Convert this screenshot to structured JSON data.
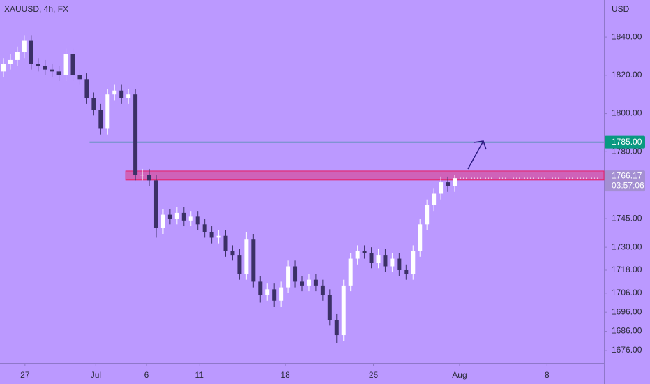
{
  "chart_data": {
    "type": "candlestick",
    "title": "XAUUSD, 4h, FX",
    "currency": "USD",
    "x": [
      0.5,
      1.5,
      2.5,
      3.5,
      4.5,
      5.5,
      6.5,
      7.5,
      8.5,
      9.5,
      10.5,
      11.5,
      12.5,
      13.5,
      14.5,
      15.5,
      16.5,
      17.5,
      18.5,
      19.5,
      20.5,
      21.5,
      22.5,
      23.5,
      24.5,
      25.5,
      26.5,
      27.5,
      28.5,
      29.5,
      30.5,
      31.5,
      32.5,
      33.5,
      34.5,
      35.5,
      36.5,
      37.5,
      38.5,
      39.5,
      40.5,
      41.5,
      42.5,
      43.5,
      44.5,
      45.5,
      46.5,
      47.5,
      48.5,
      49.5,
      50.5,
      51.5,
      52.5,
      53.5,
      54.5,
      55.5,
      56.5,
      57.5,
      58.5,
      59.5,
      60.5,
      61.5,
      62.5,
      63.5,
      64.5,
      65.5
    ],
    "open": [
      1822,
      1826,
      1828,
      1832,
      1838,
      1826,
      1825,
      1823,
      1822,
      1820,
      1831,
      1820,
      1818,
      1808,
      1802,
      1792,
      1810,
      1812,
      1808,
      1810,
      1768,
      1768,
      1765,
      1740,
      1747,
      1745,
      1748,
      1744,
      1746,
      1742,
      1738,
      1735,
      1736,
      1728,
      1726,
      1716,
      1734,
      1712,
      1705,
      1708,
      1702,
      1709,
      1720,
      1712,
      1710,
      1713,
      1710,
      1705,
      1692,
      1684,
      1710,
      1724,
      1728,
      1727,
      1722,
      1726,
      1720,
      1724,
      1718,
      1716,
      1728,
      1742,
      1752,
      1758,
      1764,
      1762
    ],
    "high": [
      1829,
      1831,
      1835,
      1841,
      1841,
      1829,
      1828,
      1826,
      1825,
      1834,
      1834,
      1823,
      1821,
      1811,
      1805,
      1813,
      1815,
      1815,
      1813,
      1813,
      1771,
      1771,
      1768,
      1750,
      1750,
      1751,
      1751,
      1749,
      1749,
      1745,
      1741,
      1739,
      1739,
      1731,
      1729,
      1738,
      1737,
      1715,
      1711,
      1711,
      1712,
      1723,
      1723,
      1715,
      1716,
      1716,
      1713,
      1708,
      1695,
      1713,
      1727,
      1731,
      1731,
      1730,
      1729,
      1729,
      1727,
      1727,
      1721,
      1731,
      1745,
      1755,
      1761,
      1767,
      1767,
      1768
    ],
    "low": [
      1819,
      1823,
      1825,
      1829,
      1823,
      1822,
      1820,
      1819,
      1817,
      1817,
      1817,
      1815,
      1805,
      1799,
      1789,
      1789,
      1807,
      1805,
      1805,
      1765,
      1765,
      1762,
      1735,
      1737,
      1742,
      1742,
      1741,
      1741,
      1739,
      1735,
      1732,
      1732,
      1725,
      1723,
      1713,
      1713,
      1709,
      1701,
      1702,
      1699,
      1699,
      1706,
      1709,
      1707,
      1707,
      1707,
      1702,
      1689,
      1680,
      1681,
      1707,
      1721,
      1724,
      1719,
      1719,
      1717,
      1717,
      1715,
      1713,
      1713,
      1725,
      1739,
      1749,
      1755,
      1759,
      1759
    ],
    "close": [
      1826,
      1828,
      1832,
      1838,
      1826,
      1825,
      1823,
      1822,
      1820,
      1831,
      1820,
      1818,
      1808,
      1802,
      1792,
      1810,
      1812,
      1808,
      1810,
      1768,
      1768,
      1765,
      1740,
      1747,
      1745,
      1748,
      1744,
      1746,
      1742,
      1738,
      1735,
      1736,
      1728,
      1726,
      1716,
      1734,
      1712,
      1705,
      1708,
      1702,
      1709,
      1720,
      1712,
      1710,
      1713,
      1710,
      1705,
      1692,
      1684,
      1710,
      1724,
      1728,
      1727,
      1722,
      1726,
      1720,
      1724,
      1718,
      1716,
      1728,
      1742,
      1752,
      1758,
      1764,
      1762,
      1766.17
    ],
    "up_color": "#ffffff",
    "down_color": "#3b3066",
    "xlim": [
      0,
      87
    ],
    "xticks": [
      {
        "value": 3.6,
        "label": "27"
      },
      {
        "value": 13.8,
        "label": "Jul"
      },
      {
        "value": 21.1,
        "label": "6"
      },
      {
        "value": 28.7,
        "label": "11"
      },
      {
        "value": 41.1,
        "label": "18"
      },
      {
        "value": 53.8,
        "label": "25"
      },
      {
        "value": 66.2,
        "label": "Aug"
      },
      {
        "value": 78.8,
        "label": "8"
      }
    ],
    "ylim": [
      1669.4,
      1859.4
    ],
    "yticks": [
      {
        "value": 1840,
        "label": "1840.00"
      },
      {
        "value": 1820,
        "label": "1820.00"
      },
      {
        "value": 1800,
        "label": "1800.00"
      },
      {
        "value": 1780,
        "label": "1780.00"
      },
      {
        "value": 1745,
        "label": "1745.00"
      },
      {
        "value": 1730,
        "label": "1730.00"
      },
      {
        "value": 1718,
        "label": "1718.00"
      },
      {
        "value": 1706,
        "label": "1706.00"
      },
      {
        "value": 1696,
        "label": "1696.00"
      },
      {
        "value": 1686,
        "label": "1686.00"
      },
      {
        "value": 1676,
        "label": "1676.00"
      }
    ],
    "level": {
      "value": 1785,
      "label": "1785.00",
      "start": 12.9,
      "color": "#1f8a8a",
      "tag_color": "#089981"
    },
    "zone": {
      "low": 1765.2,
      "high": 1769.9,
      "start": 18.1,
      "color": "#e91e63"
    },
    "last_price": 1766.17,
    "countdown": "03:57:06"
  }
}
